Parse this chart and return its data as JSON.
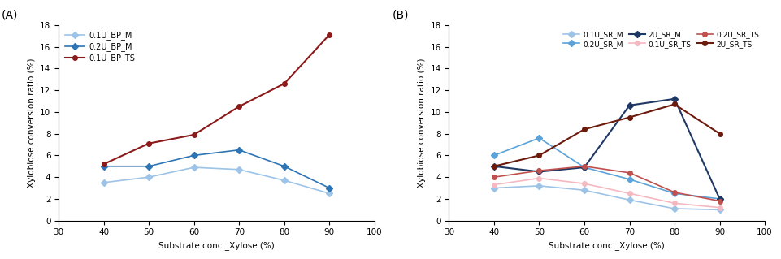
{
  "x": [
    40,
    50,
    60,
    70,
    80,
    90
  ],
  "panel_A": {
    "label": "(A)",
    "series": [
      {
        "name": "0.1U_BP_M",
        "values": [
          3.5,
          4.0,
          4.9,
          4.7,
          3.7,
          2.5
        ],
        "color": "#9DC3E6",
        "marker": "D",
        "markersize": 4,
        "linewidth": 1.2
      },
      {
        "name": "0.2U_BP_M",
        "values": [
          5.0,
          5.0,
          6.0,
          6.5,
          5.0,
          3.0
        ],
        "color": "#2E75B6",
        "marker": "D",
        "markersize": 4,
        "linewidth": 1.2
      },
      {
        "name": "0.1U_BP_TS",
        "values": [
          5.2,
          7.1,
          7.9,
          10.5,
          12.6,
          17.1
        ],
        "color": "#8B1A1A",
        "marker": "o",
        "markersize": 4,
        "linewidth": 1.5
      }
    ],
    "xlabel": "Substrate conc._Xylose (%)",
    "ylabel": "Xylobiose conversion ratio (%)",
    "ylim": [
      0,
      18
    ],
    "xlim": [
      30,
      100
    ],
    "yticks": [
      0,
      2,
      4,
      6,
      8,
      10,
      12,
      14,
      16,
      18
    ],
    "xticks": [
      30,
      40,
      50,
      60,
      70,
      80,
      90,
      100
    ]
  },
  "panel_B": {
    "label": "(B)",
    "series": [
      {
        "name": "0.1U_SR_M",
        "values": [
          3.0,
          3.2,
          2.8,
          1.9,
          1.1,
          1.0
        ],
        "color": "#9DC3E6",
        "marker": "D",
        "markersize": 4,
        "linewidth": 1.2
      },
      {
        "name": "0.2U_SR_M",
        "values": [
          6.0,
          7.6,
          4.9,
          3.8,
          2.5,
          2.0
        ],
        "color": "#5BA3D9",
        "marker": "D",
        "markersize": 4,
        "linewidth": 1.2
      },
      {
        "name": "2U_SR_M",
        "values": [
          5.0,
          4.5,
          4.9,
          10.6,
          11.2,
          2.0
        ],
        "color": "#1F3864",
        "marker": "D",
        "markersize": 4,
        "linewidth": 1.5
      },
      {
        "name": "0.1U_SR_TS",
        "values": [
          3.3,
          3.9,
          3.4,
          2.5,
          1.6,
          1.2
        ],
        "color": "#F4B8C1",
        "marker": "o",
        "markersize": 4,
        "linewidth": 1.2
      },
      {
        "name": "0.2U_SR_TS",
        "values": [
          4.0,
          4.6,
          5.0,
          4.4,
          2.6,
          1.8
        ],
        "color": "#C0504D",
        "marker": "o",
        "markersize": 4,
        "linewidth": 1.2
      },
      {
        "name": "2U_SR_TS",
        "values": [
          5.0,
          6.0,
          8.4,
          9.5,
          10.7,
          8.0
        ],
        "color": "#6B1A0C",
        "marker": "o",
        "markersize": 4,
        "linewidth": 1.5
      }
    ],
    "xlabel": "Substrate conc._Xylose (%)",
    "ylabel": "Xylobiose conversion ratio (%)",
    "ylim": [
      0,
      18
    ],
    "xlim": [
      30,
      100
    ],
    "yticks": [
      0,
      2,
      4,
      6,
      8,
      10,
      12,
      14,
      16,
      18
    ],
    "xticks": [
      30,
      40,
      50,
      60,
      70,
      80,
      90,
      100
    ]
  }
}
